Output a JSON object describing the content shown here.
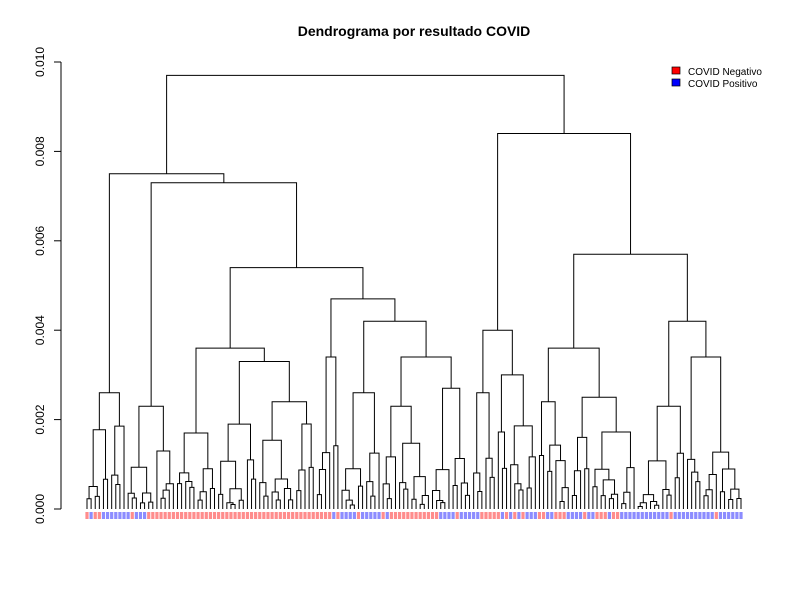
{
  "chart_data": {
    "type": "dendrogram",
    "title": "Dendrograma por resultado COVID",
    "xlabel": "",
    "ylabel": "",
    "ylim": [
      0,
      0.01
    ],
    "yticks": [
      "0.000",
      "0.002",
      "0.004",
      "0.006",
      "0.008",
      "0.010"
    ],
    "grid": false,
    "legend_position": "top-right",
    "legend": [
      {
        "label": "COVID Negativo",
        "color": "#ff0000"
      },
      {
        "label": "COVID Positivo",
        "color": "#0000ff"
      }
    ],
    "leaf_count": 180,
    "main_merges": [
      {
        "height": 0.0097,
        "description": "root"
      },
      {
        "height": 0.0084
      },
      {
        "height": 0.0075
      },
      {
        "height": 0.0073
      },
      {
        "height": 0.0057
      },
      {
        "height": 0.0054
      },
      {
        "height": 0.0047
      },
      {
        "height": 0.0042
      },
      {
        "height": 0.004
      },
      {
        "height": 0.0036
      },
      {
        "height": 0.0034
      },
      {
        "height": 0.0033
      },
      {
        "height": 0.0026
      }
    ]
  }
}
